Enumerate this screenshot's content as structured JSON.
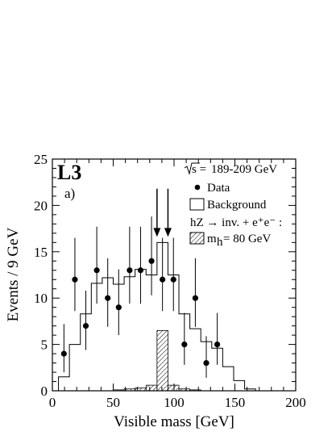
{
  "chart_data": {
    "type": "histogram",
    "experiment_label": "L3",
    "panel_label": "a)",
    "xlabel": "Visible mass  [GeV]",
    "ylabel": "Events / 9 GeV",
    "xlim": [
      0,
      200
    ],
    "ylim": [
      0,
      25
    ],
    "x_ticks": [
      0,
      50,
      100,
      150,
      200
    ],
    "y_ticks": [
      0,
      5,
      10,
      15,
      20,
      25
    ],
    "bin_edges": [
      5,
      14,
      23,
      32,
      41,
      50,
      59,
      68,
      77,
      86,
      95,
      104,
      113,
      122,
      131,
      140,
      149,
      158,
      167
    ],
    "background": [
      1.5,
      5,
      8.3,
      11.6,
      12.2,
      11.5,
      12.3,
      13.1,
      12.5,
      16.0,
      12.5,
      8.3,
      6.7,
      5.3,
      4.6,
      2.6,
      1.1,
      0.2
    ],
    "signal": [
      0,
      0,
      0,
      0,
      0,
      0.1,
      0.2,
      0.3,
      0.6,
      6.5,
      0.6,
      0.2,
      0.1,
      0,
      0,
      0,
      0,
      0
    ],
    "data": {
      "x": [
        9.5,
        18.5,
        27.5,
        36.5,
        45.5,
        54.5,
        63.5,
        72.5,
        81.5,
        90.5,
        99.5,
        108.5,
        117.5,
        126.5,
        135.5
      ],
      "y": [
        4,
        12,
        7,
        13,
        10,
        9,
        13,
        13,
        14,
        12,
        12,
        5,
        10,
        3,
        5
      ],
      "err_low": [
        2.0,
        3.4,
        2.6,
        3.6,
        3.1,
        3.0,
        3.6,
        3.6,
        3.7,
        3.4,
        3.4,
        2.2,
        3.1,
        1.6,
        2.2
      ],
      "err_high": [
        3.2,
        4.5,
        3.8,
        4.7,
        4.3,
        4.1,
        4.7,
        4.7,
        4.8,
        4.5,
        4.5,
        3.4,
        4.3,
        2.9,
        3.4
      ]
    },
    "cut_arrows_x": [
      86,
      95
    ],
    "legend": {
      "energy": "189-209 GeV",
      "data_label": "Data",
      "background_label": "Background",
      "process_label": "hZ → inv. + e⁺e⁻ :",
      "signal_mass": "= 80 GeV"
    }
  }
}
